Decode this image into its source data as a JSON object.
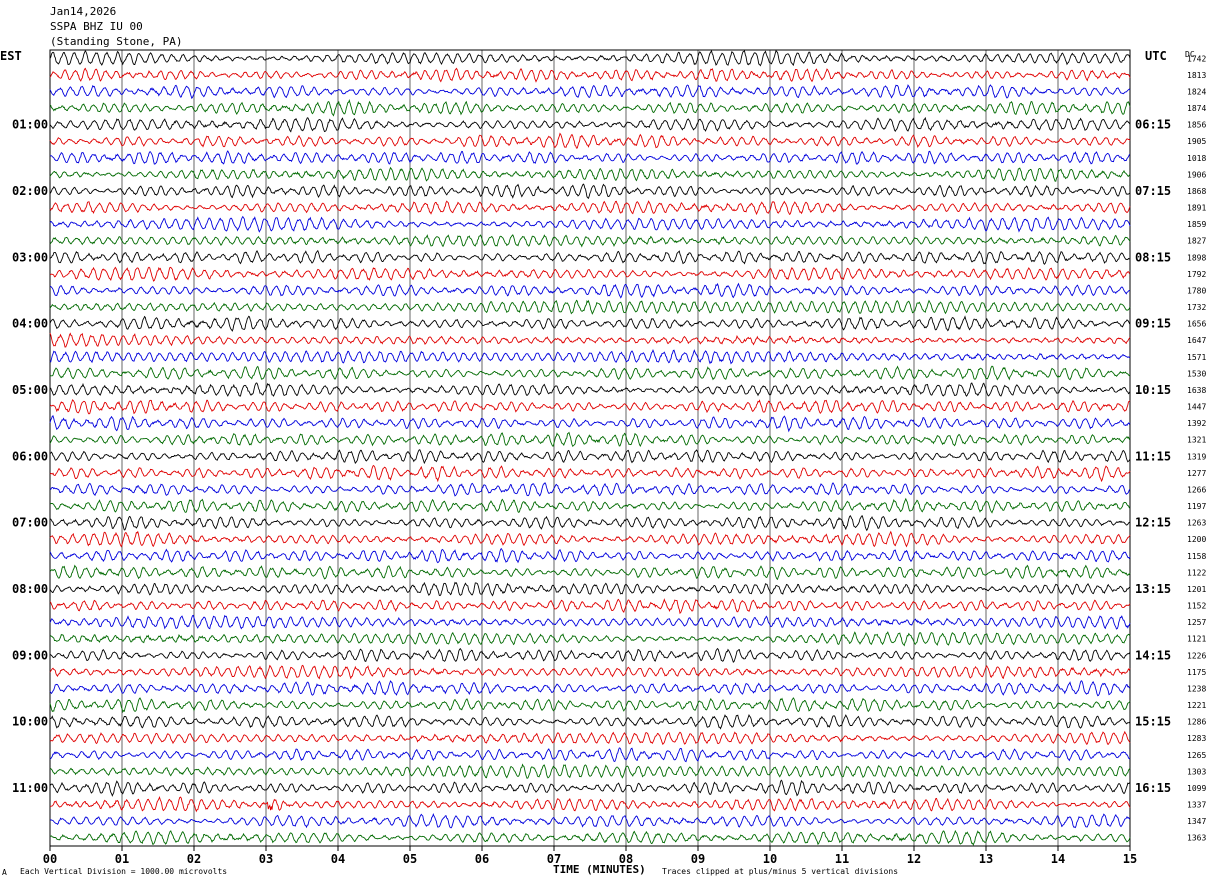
{
  "header": {
    "date": "Jan14,2026",
    "station": "SSPA BHZ IU 00",
    "location": "(Standing Stone, PA)"
  },
  "left_axis_label": "EST",
  "right_axis_label": "UTC",
  "dc_label": "DC",
  "footer": {
    "scale_note": "Each Vertical Division = 1000.00 microvolts",
    "time_label": "TIME (MINUTES)",
    "clip_note": "Traces clipped at plus/minus 5 vertical divisions",
    "corner_mark": "A"
  },
  "colors": {
    "trace_cycle": [
      "#000000",
      "#e00000",
      "#0000dd",
      "#006a00"
    ],
    "grid": "#000000"
  },
  "chart_data": {
    "type": "line",
    "title": "SSPA BHZ IU 00",
    "xlabel": "TIME (MINUTES)",
    "xlim": [
      0,
      15
    ],
    "x_ticks": [
      "00",
      "01",
      "02",
      "03",
      "04",
      "05",
      "06",
      "07",
      "08",
      "09",
      "10",
      "11",
      "12",
      "13",
      "14",
      "15"
    ],
    "est_hour_labels": [
      "01:00",
      "02:00",
      "03:00",
      "04:00",
      "05:00",
      "06:00",
      "07:00",
      "08:00",
      "09:00",
      "10:00",
      "11:00"
    ],
    "utc_hour_labels": [
      "06:15",
      "07:15",
      "08:15",
      "09:15",
      "10:15",
      "11:15",
      "12:15",
      "13:15",
      "14:15",
      "15:15",
      "16:15"
    ],
    "trace_count": 48,
    "dc_offsets": [
      "1742",
      "1813",
      "1824",
      "1874",
      "1856",
      "1905",
      "1018",
      "1906",
      "1868",
      "1891",
      "1859",
      "1827",
      "1898",
      "1792",
      "1780",
      "1732",
      "1656",
      "1647",
      "1571",
      "1530",
      "1638",
      "1447",
      "1392",
      "1321",
      "1319",
      "1277",
      "1266",
      "1197",
      "1263",
      "1200",
      "1158",
      "1122",
      "1201",
      "1152",
      "1257",
      "1121",
      "1226",
      "1175",
      "1238",
      "1221",
      "1286",
      "1283",
      "1265",
      "1303",
      "1099",
      "1337",
      "1347",
      "1363"
    ],
    "notable_event": {
      "trace_index": 45,
      "minute": 3.05
    }
  }
}
